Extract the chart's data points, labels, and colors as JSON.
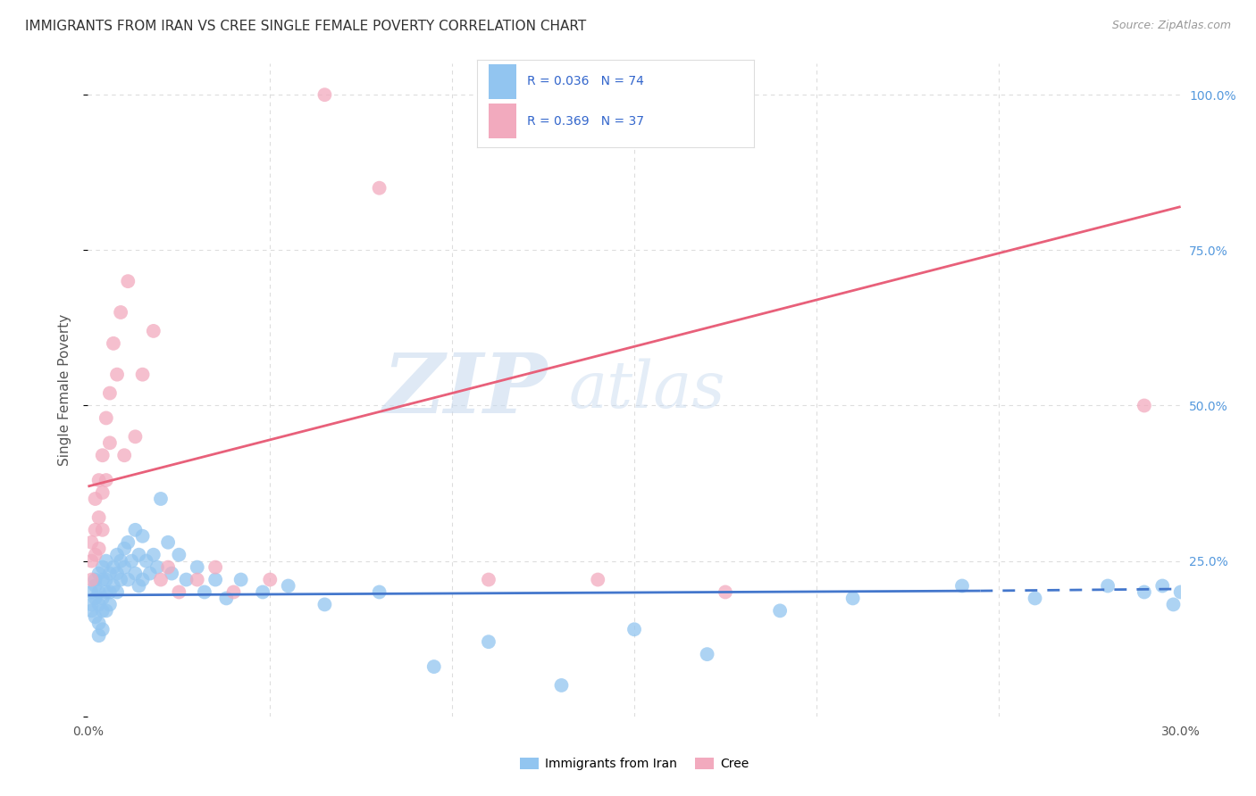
{
  "title": "IMMIGRANTS FROM IRAN VS CREE SINGLE FEMALE POVERTY CORRELATION CHART",
  "source": "Source: ZipAtlas.com",
  "ylabel": "Single Female Poverty",
  "xlim": [
    0.0,
    0.3
  ],
  "ylim": [
    0.0,
    1.05
  ],
  "xticks": [
    0.0,
    0.05,
    0.1,
    0.15,
    0.2,
    0.25,
    0.3
  ],
  "xticklabels": [
    "0.0%",
    "",
    "",
    "",
    "",
    "",
    "30.0%"
  ],
  "yticks_right": [
    0.0,
    0.25,
    0.5,
    0.75,
    1.0
  ],
  "yticklabels_right": [
    "",
    "25.0%",
    "50.0%",
    "75.0%",
    "100.0%"
  ],
  "blue_color": "#92C5F0",
  "pink_color": "#F2AABE",
  "blue_R": 0.036,
  "blue_N": 74,
  "pink_R": 0.369,
  "pink_N": 37,
  "watermark_zip": "ZIP",
  "watermark_atlas": "atlas",
  "legend_label_blue": "Immigrants from Iran",
  "legend_label_pink": "Cree",
  "blue_scatter_x": [
    0.001,
    0.001,
    0.001,
    0.002,
    0.002,
    0.002,
    0.002,
    0.003,
    0.003,
    0.003,
    0.003,
    0.003,
    0.004,
    0.004,
    0.004,
    0.004,
    0.004,
    0.005,
    0.005,
    0.005,
    0.005,
    0.006,
    0.006,
    0.006,
    0.007,
    0.007,
    0.008,
    0.008,
    0.008,
    0.009,
    0.009,
    0.01,
    0.01,
    0.011,
    0.011,
    0.012,
    0.013,
    0.013,
    0.014,
    0.014,
    0.015,
    0.015,
    0.016,
    0.017,
    0.018,
    0.019,
    0.02,
    0.022,
    0.023,
    0.025,
    0.027,
    0.03,
    0.032,
    0.035,
    0.038,
    0.042,
    0.048,
    0.055,
    0.065,
    0.08,
    0.095,
    0.11,
    0.13,
    0.15,
    0.17,
    0.19,
    0.21,
    0.24,
    0.26,
    0.28,
    0.29,
    0.295,
    0.298,
    0.3
  ],
  "blue_scatter_y": [
    0.2,
    0.18,
    0.17,
    0.22,
    0.21,
    0.19,
    0.16,
    0.23,
    0.2,
    0.18,
    0.15,
    0.13,
    0.24,
    0.22,
    0.19,
    0.17,
    0.14,
    0.25,
    0.22,
    0.2,
    0.17,
    0.23,
    0.2,
    0.18,
    0.24,
    0.21,
    0.26,
    0.23,
    0.2,
    0.25,
    0.22,
    0.27,
    0.24,
    0.28,
    0.22,
    0.25,
    0.3,
    0.23,
    0.26,
    0.21,
    0.29,
    0.22,
    0.25,
    0.23,
    0.26,
    0.24,
    0.35,
    0.28,
    0.23,
    0.26,
    0.22,
    0.24,
    0.2,
    0.22,
    0.19,
    0.22,
    0.2,
    0.21,
    0.18,
    0.2,
    0.08,
    0.12,
    0.05,
    0.14,
    0.1,
    0.17,
    0.19,
    0.21,
    0.19,
    0.21,
    0.2,
    0.21,
    0.18,
    0.2
  ],
  "pink_scatter_x": [
    0.001,
    0.001,
    0.001,
    0.002,
    0.002,
    0.002,
    0.003,
    0.003,
    0.003,
    0.004,
    0.004,
    0.004,
    0.005,
    0.005,
    0.006,
    0.006,
    0.007,
    0.008,
    0.009,
    0.01,
    0.011,
    0.013,
    0.015,
    0.018,
    0.02,
    0.022,
    0.025,
    0.03,
    0.035,
    0.04,
    0.05,
    0.065,
    0.08,
    0.11,
    0.14,
    0.175,
    0.29
  ],
  "pink_scatter_y": [
    0.25,
    0.28,
    0.22,
    0.3,
    0.26,
    0.35,
    0.38,
    0.32,
    0.27,
    0.42,
    0.36,
    0.3,
    0.48,
    0.38,
    0.52,
    0.44,
    0.6,
    0.55,
    0.65,
    0.42,
    0.7,
    0.45,
    0.55,
    0.62,
    0.22,
    0.24,
    0.2,
    0.22,
    0.24,
    0.2,
    0.22,
    1.0,
    0.85,
    0.22,
    0.22,
    0.2,
    0.5
  ],
  "blue_trend_x": [
    0.0,
    0.245,
    0.245,
    0.3
  ],
  "blue_trend_y": [
    0.195,
    0.205,
    0.205,
    0.205
  ],
  "blue_trend_solid_end": 0.245,
  "pink_trend_x": [
    0.0,
    0.3
  ],
  "pink_trend_y": [
    0.37,
    0.82
  ],
  "grid_color": "#DDDDDD",
  "title_color": "#333333",
  "axis_label_color": "#555555",
  "right_tick_color": "#5599DD",
  "legend_color": "#3366CC"
}
